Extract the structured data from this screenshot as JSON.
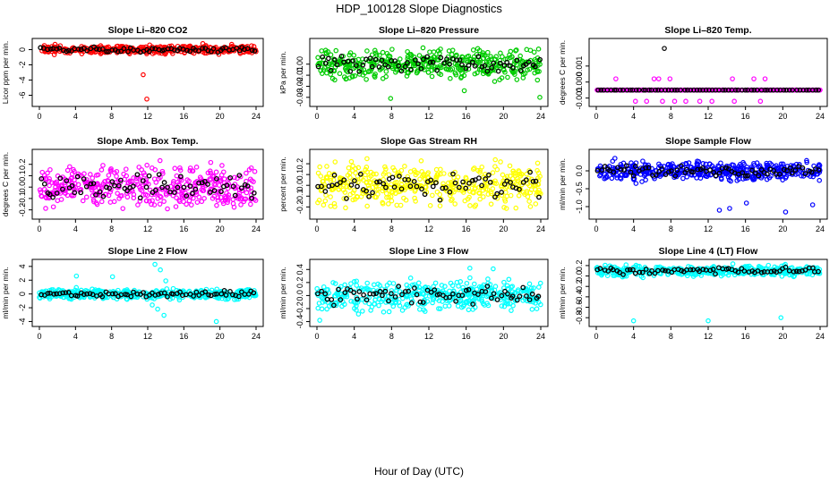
{
  "figure_title": "HDP_100128  Slope Diagnostics",
  "x_axis_label": "Hour of Day (UTC)",
  "colors": {
    "mean_points": "#000000"
  },
  "chart_data": [
    {
      "type": "scatter",
      "title": "Slope Li–820 CO2",
      "ylabel": "Licor ppm per min.",
      "xlim": [
        0,
        24
      ],
      "ylim": [
        -7,
        1
      ],
      "xticks": [
        0,
        4,
        8,
        12,
        16,
        20,
        24
      ],
      "yticks": [
        -6,
        -4,
        -2,
        0
      ],
      "ytick_labels": [
        "-6",
        "-4",
        "-2",
        "0"
      ],
      "color": "#ff0000",
      "base": 0,
      "spread": 0.35,
      "seed": 11,
      "outliers": [
        {
          "x": 11.5,
          "y": -3.3
        },
        {
          "x": 11.9,
          "y": -6.5
        },
        {
          "x": 18.1,
          "y": 0.8
        },
        {
          "x": 21.3,
          "y": 0.7
        }
      ]
    },
    {
      "type": "scatter",
      "title": "Slope Li–820 Pressure",
      "ylabel": "kPa per min.",
      "xlim": [
        0,
        24
      ],
      "ylim": [
        -0.035,
        0.02
      ],
      "xticks": [
        0,
        4,
        8,
        12,
        16,
        20,
        24
      ],
      "yticks": [
        -0.03,
        -0.02,
        -0.01,
        0
      ],
      "ytick_labels": [
        "-0.03",
        "-0.02",
        "-0.01",
        "0.00"
      ],
      "color": "#00cc00",
      "base": 0,
      "spread": 0.009,
      "seed": 23,
      "outliers": [
        {
          "x": 7.9,
          "y": -0.031
        },
        {
          "x": 15.8,
          "y": -0.024
        },
        {
          "x": 23.9,
          "y": -0.03
        },
        {
          "x": 0.5,
          "y": 0.012
        }
      ]
    },
    {
      "type": "scatter",
      "title": "Slope Li–820 Temp.",
      "ylabel": "degrees C per min.",
      "xlim": [
        0,
        24
      ],
      "ylim": [
        -0.0013,
        0.0025
      ],
      "xticks": [
        0,
        4,
        8,
        12,
        16,
        20,
        24
      ],
      "yticks": [
        -0.001,
        0,
        0.001
      ],
      "ytick_labels": [
        "-0.001",
        "0.000",
        "0.001"
      ],
      "color": "#ff00ff",
      "base": -0.0005,
      "spread": 0,
      "seed": 5,
      "outliers": [
        {
          "x": 2.1,
          "y": 0.0002
        },
        {
          "x": 6.2,
          "y": 0.0002
        },
        {
          "x": 6.7,
          "y": 0.0002
        },
        {
          "x": 7.9,
          "y": 0.0002
        },
        {
          "x": 14.6,
          "y": 0.0002
        },
        {
          "x": 16.9,
          "y": 0.0002
        },
        {
          "x": 18.1,
          "y": 0.0002
        },
        {
          "x": 4.2,
          "y": -0.0012
        },
        {
          "x": 5.4,
          "y": -0.0012
        },
        {
          "x": 7.1,
          "y": -0.0012
        },
        {
          "x": 8.4,
          "y": -0.0012
        },
        {
          "x": 9.6,
          "y": -0.0012
        },
        {
          "x": 11.1,
          "y": -0.0012
        },
        {
          "x": 12.4,
          "y": -0.0012
        },
        {
          "x": 14.8,
          "y": -0.0012
        },
        {
          "x": 17.6,
          "y": -0.0012
        },
        {
          "x": 7.3,
          "y": 0.0021
        }
      ]
    },
    {
      "type": "scatter",
      "title": "Slope Amb. Box Temp.",
      "ylabel": "degrees C per min.",
      "xlim": [
        0,
        24
      ],
      "ylim": [
        -0.25,
        0.3
      ],
      "xticks": [
        0,
        4,
        8,
        12,
        16,
        20,
        24
      ],
      "yticks": [
        -0.2,
        -0.1,
        0,
        0.1,
        0.2
      ],
      "ytick_labels": [
        "-0.2",
        "-0.1",
        "0.0",
        "0.1",
        "0.2"
      ],
      "color": "#ff00ff",
      "base": 0,
      "spread": 0.12,
      "seed": 37,
      "outliers": []
    },
    {
      "type": "scatter",
      "title": "Slope Gas Stream RH",
      "ylabel": "percent per min.",
      "xlim": [
        0,
        24
      ],
      "ylim": [
        -0.28,
        0.3
      ],
      "xticks": [
        0,
        4,
        8,
        12,
        16,
        20,
        24
      ],
      "yticks": [
        -0.2,
        -0.1,
        0,
        0.1,
        0.2
      ],
      "ytick_labels": [
        "-0.2",
        "-0.1",
        "0.0",
        "0.1",
        "0.2"
      ],
      "color": "#ffff00",
      "base": 0,
      "spread": 0.13,
      "seed": 41,
      "outliers": []
    },
    {
      "type": "scatter",
      "title": "Slope Sample Flow",
      "ylabel": "ml/min per min.",
      "xlim": [
        0,
        24
      ],
      "ylim": [
        -1.25,
        0.5
      ],
      "xticks": [
        0,
        4,
        8,
        12,
        16,
        20,
        24
      ],
      "yticks": [
        -1,
        -0.5,
        0
      ],
      "ytick_labels": [
        "-1.0",
        "-0.5",
        "0.0"
      ],
      "color": "#0000ff",
      "base": 0,
      "spread": 0.18,
      "seed": 53,
      "outliers": [
        {
          "x": 13.2,
          "y": -1.1
        },
        {
          "x": 14.3,
          "y": -1.05
        },
        {
          "x": 16.1,
          "y": -0.9
        },
        {
          "x": 20.3,
          "y": -1.15
        },
        {
          "x": 23.2,
          "y": -0.95
        },
        {
          "x": 2.0,
          "y": 0.35
        }
      ]
    },
    {
      "type": "scatter",
      "title": "Slope Line 2 Flow",
      "ylabel": "ml/min per min.",
      "xlim": [
        0,
        24
      ],
      "ylim": [
        -4.2,
        4.5
      ],
      "xticks": [
        0,
        4,
        8,
        12,
        16,
        20,
        24
      ],
      "yticks": [
        -4,
        -2,
        0,
        2,
        4
      ],
      "ytick_labels": [
        "-4",
        "-2",
        "0",
        "2",
        "4"
      ],
      "color": "#00ffff",
      "base": 0,
      "spread": 0.5,
      "seed": 67,
      "outliers": [
        {
          "x": 12.8,
          "y": 4.3
        },
        {
          "x": 13.4,
          "y": 3.5
        },
        {
          "x": 12.5,
          "y": -1.6
        },
        {
          "x": 13.1,
          "y": -2.2
        },
        {
          "x": 13.8,
          "y": -3.1
        },
        {
          "x": 19.6,
          "y": -4.0
        },
        {
          "x": 4.1,
          "y": 2.6
        },
        {
          "x": 8.1,
          "y": 2.5
        },
        {
          "x": 14.0,
          "y": 1.9
        }
      ]
    },
    {
      "type": "scatter",
      "title": "Slope Line 3 Flow",
      "ylabel": "ml/min per min.",
      "xlim": [
        0,
        24
      ],
      "ylim": [
        -0.42,
        0.5
      ],
      "xticks": [
        0,
        4,
        8,
        12,
        16,
        20,
        24
      ],
      "yticks": [
        -0.4,
        -0.2,
        0,
        0.2,
        0.4
      ],
      "ytick_labels": [
        "-0.4",
        "-0.2",
        "0.0",
        "0.2",
        "0.4"
      ],
      "color": "#00ffff",
      "base": 0,
      "spread": 0.15,
      "seed": 71,
      "outliers": [
        {
          "x": 0.3,
          "y": -0.38
        },
        {
          "x": 16.4,
          "y": 0.42
        },
        {
          "x": 18.9,
          "y": 0.41
        }
      ]
    },
    {
      "type": "scatter",
      "title": "Slope Line 4 (LT) Flow",
      "ylabel": "ml/min per min.",
      "xlim": [
        0,
        24
      ],
      "ylim": [
        -0.9,
        0.25
      ],
      "xticks": [
        0,
        4,
        8,
        12,
        16,
        20,
        24
      ],
      "yticks": [
        -0.8,
        -0.6,
        -0.4,
        -0.2,
        0,
        0.2
      ],
      "ytick_labels": [
        "-0.8",
        "-0.6",
        "-0.4",
        "-0.2",
        "0.0",
        "0.2"
      ],
      "color": "#00ffff",
      "base": 0.1,
      "spread": 0.07,
      "seed": 83,
      "outliers": [
        {
          "x": 4.0,
          "y": -0.86
        },
        {
          "x": 12.0,
          "y": -0.86
        },
        {
          "x": 19.8,
          "y": -0.8
        }
      ]
    }
  ]
}
